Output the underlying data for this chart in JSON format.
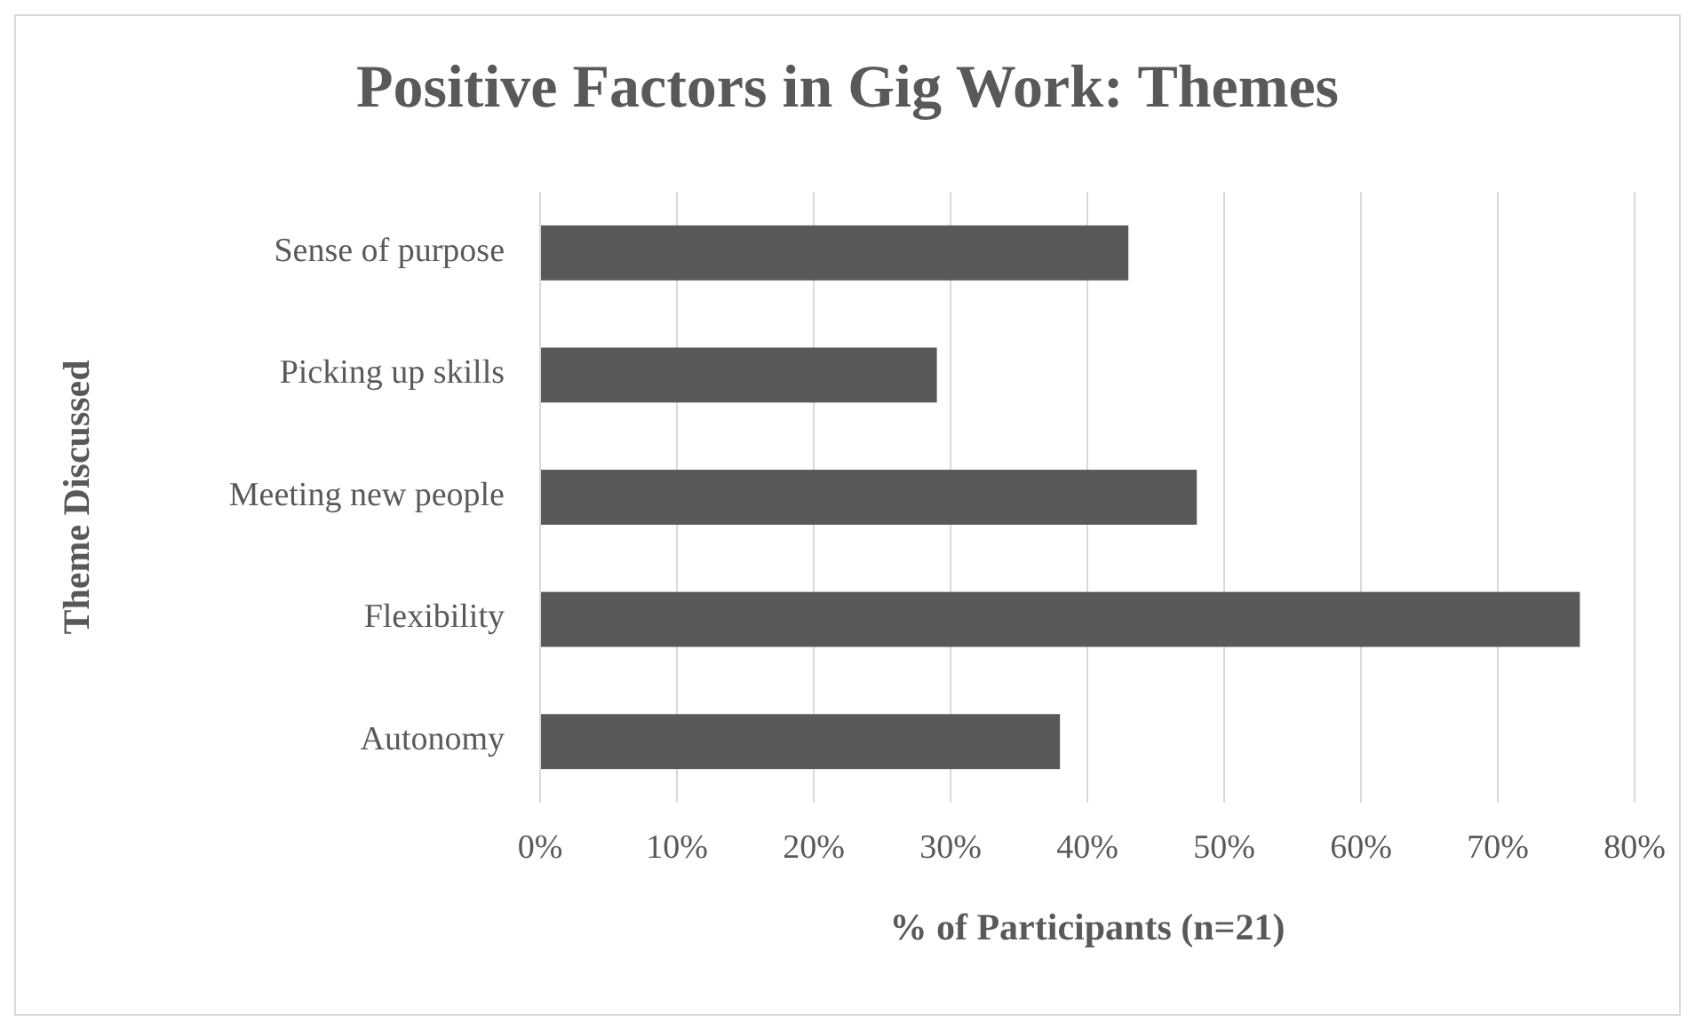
{
  "chart_data": {
    "type": "bar",
    "orientation": "horizontal",
    "title": "Positive Factors in Gig Work: Themes",
    "xlabel": "% of Participants (n=21)",
    "ylabel": "Theme Discussed",
    "categories": [
      "Sense of purpose",
      "Picking up skills",
      "Meeting new people",
      "Flexibility",
      "Autonomy"
    ],
    "values": [
      43,
      29,
      48,
      76,
      38
    ],
    "color": "#595959",
    "xlim": [
      0,
      80
    ],
    "xticks": [
      {
        "value": 0,
        "label": "0%"
      },
      {
        "value": 10,
        "label": "10%"
      },
      {
        "value": 20,
        "label": "20%"
      },
      {
        "value": 30,
        "label": "30%"
      },
      {
        "value": 40,
        "label": "40%"
      },
      {
        "value": 50,
        "label": "50%"
      },
      {
        "value": 60,
        "label": "60%"
      },
      {
        "value": 70,
        "label": "70%"
      },
      {
        "value": 80,
        "label": "80%"
      }
    ],
    "grid": "x"
  }
}
